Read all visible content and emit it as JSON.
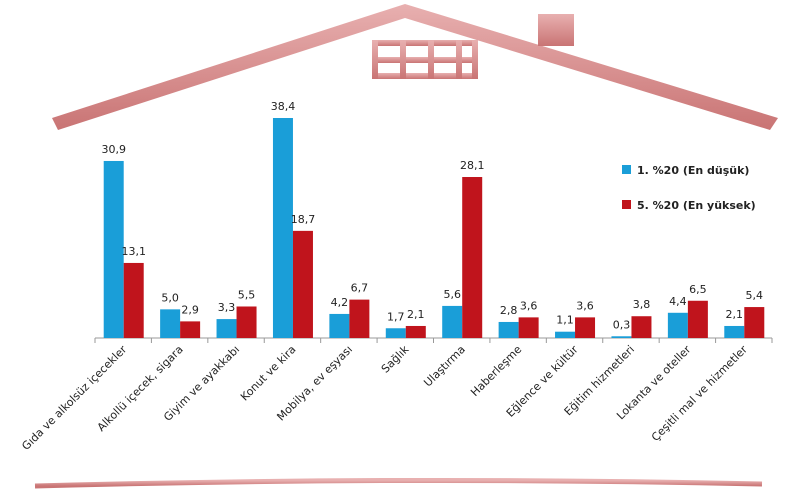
{
  "chart_data": {
    "type": "bar",
    "categories": [
      "Gıda ve alkolsüz içecekler",
      "Alkollü içecek, sigara",
      "Giyim ve ayakkabı",
      "Konut ve kira",
      "Mobilya, ev eşyası",
      "Sağlık",
      "Ulaştırma",
      "Haberleşme",
      "Eğlence ve kültür",
      "Eğitim hizmetleri",
      "Lokanta ve oteller",
      "Çeşitli mal ve hizmetler"
    ],
    "series": [
      {
        "name": "1. %20 (En düşük)",
        "color": "#1a9ed8",
        "values": [
          30.9,
          5.0,
          3.3,
          38.4,
          4.2,
          1.7,
          5.6,
          2.8,
          1.1,
          0.3,
          4.4,
          2.1
        ],
        "value_labels": [
          "30,9",
          "5,0",
          "3,3",
          "38,4",
          "4,2",
          "1,7",
          "5,6",
          "2,8",
          "1,1",
          "0,3",
          "4,4",
          "2,1"
        ]
      },
      {
        "name": "5. %20 (En yüksek)",
        "color": "#c0141c",
        "values": [
          13.1,
          2.9,
          5.5,
          18.7,
          6.7,
          2.1,
          28.1,
          3.6,
          3.6,
          3.8,
          6.5,
          5.4
        ],
        "value_labels": [
          "13,1",
          "2,9",
          "5,5",
          "18,7",
          "6,7",
          "2,1",
          "28,1",
          "3,6",
          "3,6",
          "3,8",
          "6,5",
          "5,4"
        ]
      }
    ]
  }
}
